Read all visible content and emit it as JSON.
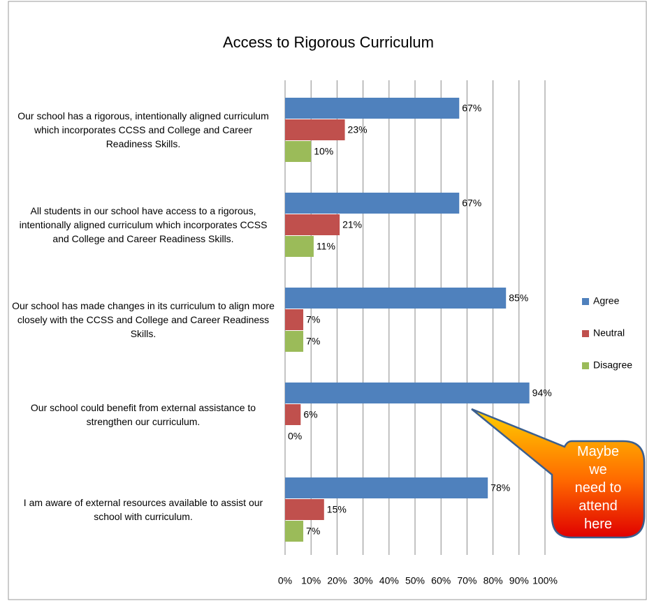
{
  "chart_data": {
    "type": "barh",
    "title": "Access to Rigorous Curriculum",
    "categories": [
      "Our school has a rigorous, intentionally  aligned curriculum which incorporates CCSS and College and Career Readiness Skills.",
      "All students in our school have access to a rigorous, intentionally  aligned curriculum which incorporates CCSS and  College and  Career Readiness Skills.",
      "Our school has made changes in its curriculum to align more closely with the CCSS and College and Career Readiness Skills.",
      "Our school could benefit from external assistance to strengthen our curriculum.",
      "I am aware of external resources available to assist our school  with curriculum."
    ],
    "series": [
      {
        "name": "Agree",
        "color": "#4f81bd",
        "values": [
          67,
          67,
          85,
          94,
          78
        ],
        "value_labels": [
          "67%",
          "67%",
          "85%",
          "94%",
          "78%"
        ]
      },
      {
        "name": "Neutral",
        "color": "#c0504d",
        "values": [
          23,
          21,
          7,
          6,
          15
        ],
        "value_labels": [
          "23%",
          "21%",
          "7%",
          "6%",
          "15%"
        ]
      },
      {
        "name": "Disagree",
        "color": "#9bbb59",
        "values": [
          10,
          11,
          7,
          0,
          7
        ],
        "value_labels": [
          "10%",
          "11%",
          "7%",
          "0%",
          "7%"
        ]
      }
    ],
    "xlim": [
      0,
      100
    ],
    "xticks": [
      {
        "value": 0,
        "label": "0%"
      },
      {
        "value": 10,
        "label": "10%"
      },
      {
        "value": 20,
        "label": "20%"
      },
      {
        "value": 30,
        "label": "30%"
      },
      {
        "value": 40,
        "label": "40%"
      },
      {
        "value": 50,
        "label": "50%"
      },
      {
        "value": 60,
        "label": "60%"
      },
      {
        "value": 70,
        "label": "70%"
      },
      {
        "value": 80,
        "label": "80%"
      },
      {
        "value": 90,
        "label": "90%"
      },
      {
        "value": 100,
        "label": "100%"
      }
    ],
    "grid": true,
    "legend": "right",
    "annotation": "Maybe we need to attend here"
  }
}
